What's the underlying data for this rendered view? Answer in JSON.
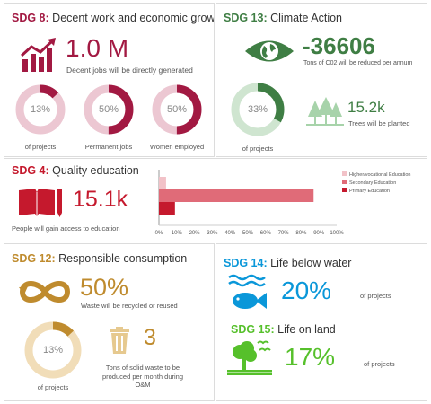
{
  "sdg8": {
    "title_num": "SDG 8:",
    "title_text": " Decent work and economic growth",
    "jobs_value": "1.0 M",
    "jobs_label": "Decent jobs will be directly generated",
    "rings": [
      {
        "pct": "13%",
        "value": 13,
        "label": "of projects"
      },
      {
        "pct": "50%",
        "value": 50,
        "label": "Permanent jobs"
      },
      {
        "pct": "50%",
        "value": 50,
        "label": "Women employed"
      }
    ],
    "color": "#a21942",
    "track_color": "#ecc7d2"
  },
  "sdg13": {
    "title_num": "SDG 13:",
    "title_text": " Climate Action",
    "co2_value": "-36606",
    "co2_label": "Tons of C02 will be reduced per annum",
    "ring": {
      "pct": "33%",
      "value": 33,
      "label": "of projects"
    },
    "trees_value": "15.2k",
    "trees_label": "Trees will be planted",
    "color": "#3f7e44",
    "track_color": "#cfe5d0"
  },
  "sdg4": {
    "title_num": "SDG 4:",
    "title_text": " Quality education",
    "value": "15.1k",
    "label": "People will gain access to education",
    "color": "#c5192d"
  },
  "chart_data": {
    "type": "bar",
    "orientation": "horizontal",
    "categories": [
      "Higher/vocational Education",
      "Secondary Education",
      "Primary Education"
    ],
    "values": [
      4,
      87,
      9
    ],
    "colors": [
      "#f2c2c8",
      "#e06b78",
      "#c5192d"
    ],
    "xlim": [
      0,
      100
    ],
    "xticks": [
      "0%",
      "10%",
      "20%",
      "30%",
      "40%",
      "50%",
      "60%",
      "70%",
      "80%",
      "90%",
      "100%"
    ],
    "legend_placement": "right"
  },
  "sdg12": {
    "title_num": "SDG 12:",
    "title_text": " Responsible consumption",
    "recycle_value": "50%",
    "recycle_label": "Waste will be recycled or reused",
    "ring": {
      "pct": "13%",
      "value": 13,
      "label": "of projects"
    },
    "waste_value": "3",
    "waste_label_1": "Tons of solid waste to be",
    "waste_label_2": "produced per month during",
    "waste_label_3": "O&M",
    "color": "#bf8b2e",
    "track_color": "#f1ddb8"
  },
  "sdg14": {
    "title_num": "SDG 14:",
    "title_text": " Life below water",
    "value": "20%",
    "label": "of projects",
    "color": "#0a97d9"
  },
  "sdg15": {
    "title_num": "SDG 15:",
    "title_text": " Life on land",
    "value": "17%",
    "label": "of projects",
    "color": "#56c02b"
  }
}
